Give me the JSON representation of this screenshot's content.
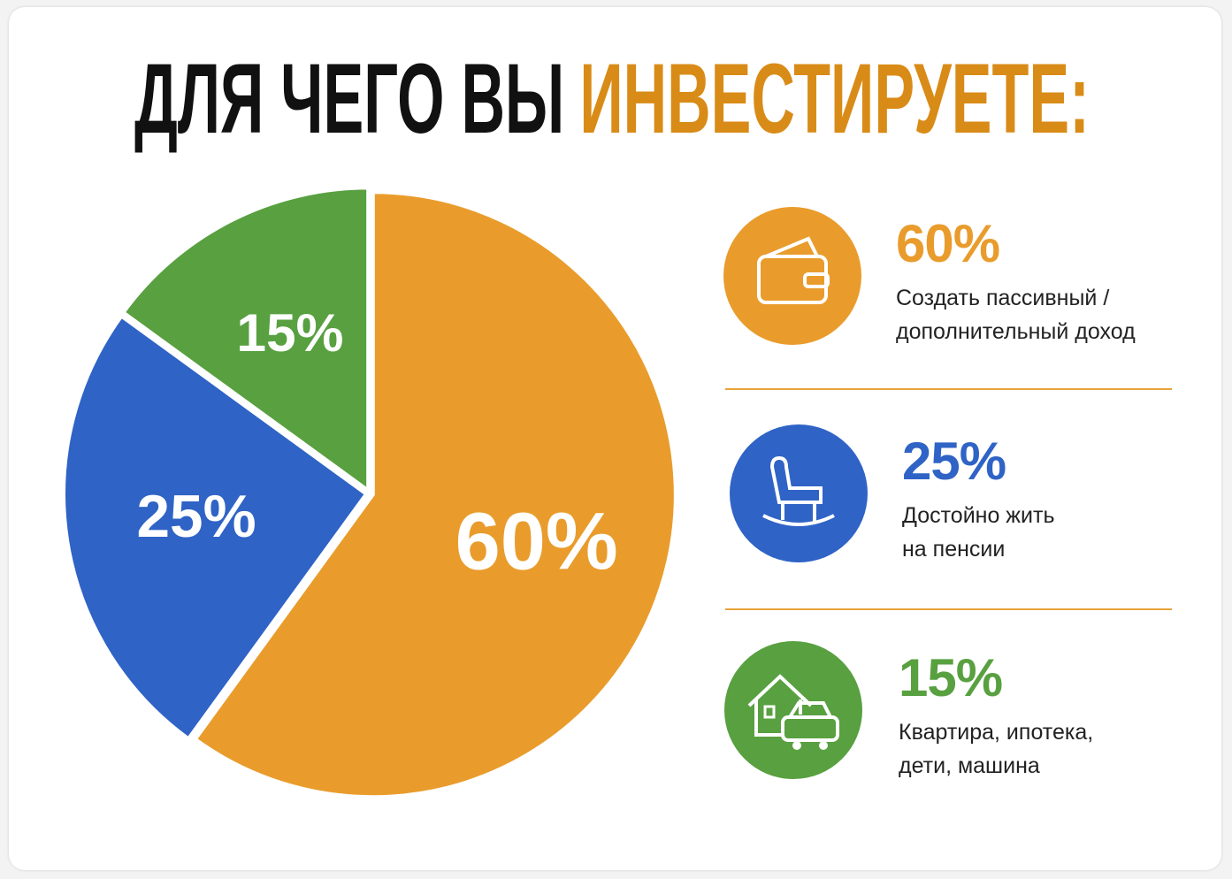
{
  "chart_data": {
    "type": "pie",
    "title": "ДЛЯ ЧЕГО ВЫ",
    "title_highlight": "ИНВЕСТИРУЕТЕ:",
    "title_highlight_color": "#d98b17",
    "categories": [
      "Создать пассивный / дополнительный доход",
      "Достойно жить на пенсии",
      "Квартира, ипотека, дети, машина"
    ],
    "values": [
      60,
      25,
      15
    ],
    "value_labels": [
      "60%",
      "25%",
      "15%"
    ],
    "colors": [
      "#e99c2c",
      "#2f63c6",
      "#58a040"
    ]
  }
}
